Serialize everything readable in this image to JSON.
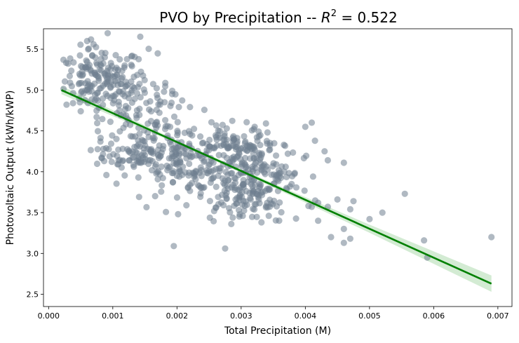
{
  "chart_data": {
    "type": "scatter",
    "title_prefix": "PVO by Precipitation -- ",
    "title_r": "R",
    "title_sup": "2",
    "title_suffix": " = 0.522",
    "xlabel": "Total Precipitation (M)",
    "ylabel": "Photovoltaic Output (kWh/kWP)",
    "xlim": [
      -8e-05,
      0.00722
    ],
    "ylim": [
      2.35,
      5.75
    ],
    "xticks": [
      0.0,
      0.001,
      0.002,
      0.003,
      0.004,
      0.005,
      0.006,
      0.007
    ],
    "xtick_labels": [
      "0.000",
      "0.001",
      "0.002",
      "0.003",
      "0.004",
      "0.005",
      "0.006",
      "0.007"
    ],
    "yticks": [
      2.5,
      3.0,
      3.5,
      4.0,
      4.5,
      5.0,
      5.5
    ],
    "ytick_labels": [
      "2.5",
      "3.0",
      "3.5",
      "4.0",
      "4.5",
      "5.0",
      "5.5"
    ],
    "grid": false,
    "colors": {
      "points": "#708090",
      "regression": "#008000",
      "ci_band": "#b5ddb5"
    },
    "regression": {
      "x_start": 0.0002,
      "y_start": 5.0,
      "x_end": 0.0069,
      "y_end": 2.63
    },
    "ci": [
      {
        "x": 0.0002,
        "half_width": 0.05
      },
      {
        "x": 0.002,
        "half_width": 0.02
      },
      {
        "x": 0.0035,
        "half_width": 0.025
      },
      {
        "x": 0.005,
        "half_width": 0.05
      },
      {
        "x": 0.0069,
        "half_width": 0.1
      }
    ],
    "clusters": [
      {
        "cx": 0.00085,
        "cy": 5.12,
        "sx": 0.0003,
        "sy": 0.2,
        "n": 170
      },
      {
        "cx": 0.0015,
        "cy": 4.7,
        "sx": 0.00035,
        "sy": 0.25,
        "n": 110
      },
      {
        "cx": 0.00145,
        "cy": 4.22,
        "sx": 0.00038,
        "sy": 0.11,
        "n": 110
      },
      {
        "cx": 0.00225,
        "cy": 4.02,
        "sx": 0.0004,
        "sy": 0.18,
        "n": 130
      },
      {
        "cx": 0.003,
        "cy": 4.3,
        "sx": 0.00035,
        "sy": 0.12,
        "n": 120
      },
      {
        "cx": 0.0033,
        "cy": 3.9,
        "sx": 0.0004,
        "sy": 0.16,
        "n": 120
      },
      {
        "cx": 0.0031,
        "cy": 3.62,
        "sx": 0.0004,
        "sy": 0.12,
        "n": 70
      }
    ],
    "outliers": [
      {
        "x": 0.00195,
        "y": 3.09
      },
      {
        "x": 0.00275,
        "y": 3.06
      },
      {
        "x": 0.0041,
        "y": 3.57
      },
      {
        "x": 0.0042,
        "y": 3.4
      },
      {
        "x": 0.0042,
        "y": 3.62
      },
      {
        "x": 0.00435,
        "y": 3.57
      },
      {
        "x": 0.0044,
        "y": 3.2
      },
      {
        "x": 0.0046,
        "y": 3.3
      },
      {
        "x": 0.0046,
        "y": 3.13
      },
      {
        "x": 0.0047,
        "y": 3.18
      },
      {
        "x": 0.0045,
        "y": 3.66
      },
      {
        "x": 0.0047,
        "y": 3.54
      },
      {
        "x": 0.00475,
        "y": 3.64
      },
      {
        "x": 0.005,
        "y": 3.42
      },
      {
        "x": 0.0052,
        "y": 3.5
      },
      {
        "x": 0.00555,
        "y": 3.73
      },
      {
        "x": 0.00585,
        "y": 3.16
      },
      {
        "x": 0.0059,
        "y": 2.95
      },
      {
        "x": 0.0069,
        "y": 3.2
      },
      {
        "x": 0.0041,
        "y": 4.6
      },
      {
        "x": 0.004,
        "y": 4.55
      },
      {
        "x": 0.00415,
        "y": 4.38
      },
      {
        "x": 0.0043,
        "y": 4.25
      },
      {
        "x": 0.00435,
        "y": 4.14
      },
      {
        "x": 0.0046,
        "y": 4.11
      },
      {
        "x": 0.0005,
        "y": 4.74
      },
      {
        "x": 0.0009,
        "y": 3.96
      },
      {
        "x": 0.0006,
        "y": 5.6
      },
      {
        "x": 0.0007,
        "y": 5.56
      }
    ]
  }
}
